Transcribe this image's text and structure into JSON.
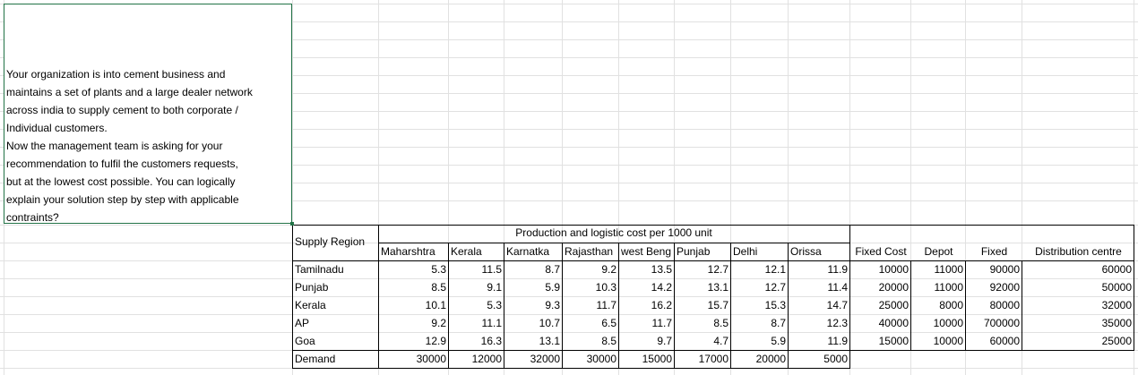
{
  "prompt_text": "Your organization is into cement business and\nmaintains a set of plants and a large dealer network\nacross india to supply cement to both corporate /\nIndividual customers.\nNow the management team is asking for your\nrecommendation to fulfil the customers requests,\nbut at the lowest cost possible. You can logically\nexplain your solution step by step with applicable\ncontraints?",
  "table": {
    "row_header_title": "Supply Region",
    "group_title": "Production and logistic cost per 1000 unit",
    "columns": [
      "Maharshtra",
      "Kerala",
      "Karnatka",
      "Rajasthan",
      "west Beng",
      "Punjab",
      "Delhi",
      "Orissa",
      "Fixed Cost",
      "Depot",
      "Fixed",
      "Distribution centre"
    ],
    "rows": [
      {
        "region": "Tamilnadu",
        "values": [
          "5.3",
          "11.5",
          "8.7",
          "9.2",
          "13.5",
          "12.7",
          "12.1",
          "11.9",
          "10000",
          "11000",
          "90000",
          "60000"
        ]
      },
      {
        "region": "Punjab",
        "values": [
          "8.5",
          "9.1",
          "5.9",
          "10.3",
          "14.2",
          "13.1",
          "12.7",
          "11.4",
          "20000",
          "11000",
          "92000",
          "50000"
        ]
      },
      {
        "region": "Kerala",
        "values": [
          "10.1",
          "5.3",
          "9.3",
          "11.7",
          "16.2",
          "15.7",
          "15.3",
          "14.7",
          "25000",
          "8000",
          "80000",
          "32000"
        ]
      },
      {
        "region": "AP",
        "values": [
          "9.2",
          "11.1",
          "10.7",
          "6.5",
          "11.7",
          "8.5",
          "8.7",
          "12.3",
          "40000",
          "10000",
          "700000",
          "35000"
        ]
      },
      {
        "region": "Goa",
        "values": [
          "12.9",
          "16.3",
          "13.1",
          "8.5",
          "9.7",
          "4.7",
          "5.9",
          "11.9",
          "15000",
          "10000",
          "60000",
          "25000"
        ]
      }
    ],
    "demand": {
      "label": "Demand",
      "values": [
        "30000",
        "12000",
        "32000",
        "30000",
        "15000",
        "17000",
        "20000",
        "5000"
      ]
    }
  }
}
